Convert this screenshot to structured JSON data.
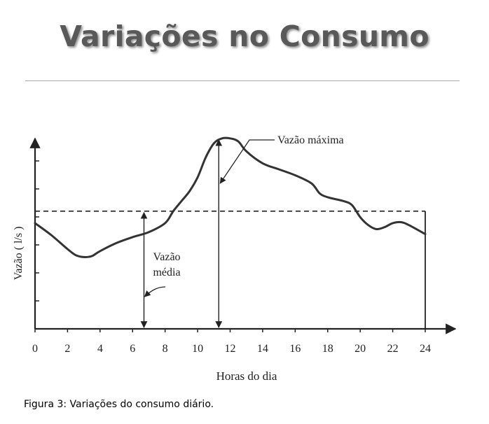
{
  "slide": {
    "title": "Variações no Consumo",
    "caption": "Figura 3: Variações do consumo diário."
  },
  "chart_data": {
    "type": "line",
    "xlabel": "Horas do dia",
    "ylabel": "Vazão ( l/s )",
    "xlim": [
      0,
      24
    ],
    "ylim": [
      0,
      10
    ],
    "x_ticks": [
      0,
      2,
      4,
      6,
      8,
      10,
      12,
      14,
      16,
      18,
      20,
      22,
      24
    ],
    "y_tick_count": 6,
    "grid": false,
    "series": [
      {
        "points": [
          [
            0,
            5.3
          ],
          [
            1,
            4.7
          ],
          [
            2,
            4.0
          ],
          [
            2.5,
            3.7
          ],
          [
            3,
            3.6
          ],
          [
            3.5,
            3.65
          ],
          [
            4,
            3.9
          ],
          [
            5,
            4.3
          ],
          [
            6,
            4.6
          ],
          [
            7,
            4.85
          ],
          [
            8,
            5.3
          ],
          [
            8.5,
            5.9
          ],
          [
            9,
            6.4
          ],
          [
            9.5,
            6.9
          ],
          [
            10,
            7.6
          ],
          [
            10.5,
            8.6
          ],
          [
            11,
            9.3
          ],
          [
            11.5,
            9.55
          ],
          [
            12,
            9.55
          ],
          [
            12.5,
            9.4
          ],
          [
            13,
            8.9
          ],
          [
            14,
            8.3
          ],
          [
            15,
            8.0
          ],
          [
            16,
            7.7
          ],
          [
            17,
            7.3
          ],
          [
            17.5,
            6.8
          ],
          [
            18,
            6.6
          ],
          [
            19,
            6.4
          ],
          [
            19.5,
            6.2
          ],
          [
            20,
            5.6
          ],
          [
            20.5,
            5.2
          ],
          [
            21,
            5.0
          ],
          [
            21.5,
            5.1
          ],
          [
            22,
            5.3
          ],
          [
            22.5,
            5.35
          ],
          [
            23,
            5.2
          ],
          [
            24,
            4.75
          ]
        ]
      }
    ],
    "average_flow": 5.9,
    "annotations": {
      "max_label": "Vazão máxima",
      "avg_label_line1": "Vazão",
      "avg_label_line2": "média"
    }
  }
}
